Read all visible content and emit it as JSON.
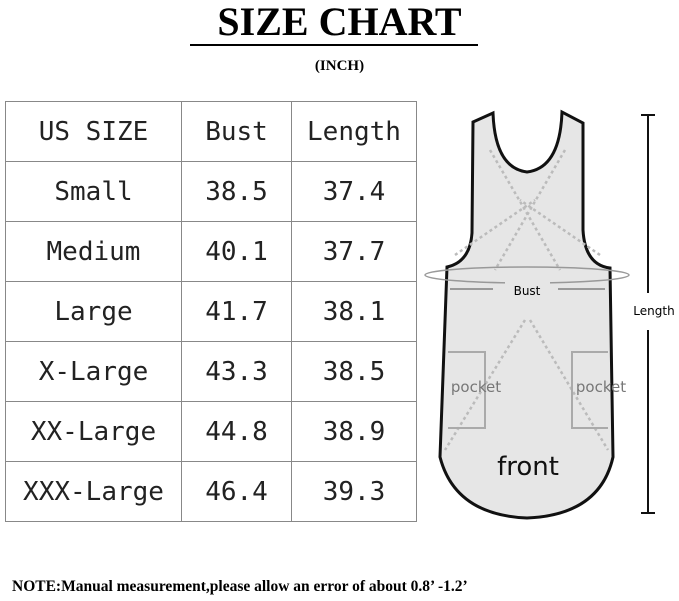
{
  "title": "SIZE CHART",
  "unit": "(INCH)",
  "table": {
    "headers": [
      "US SIZE",
      "Bust",
      "Length"
    ],
    "rows": [
      [
        "Small",
        "38.5",
        "37.4"
      ],
      [
        "Medium",
        "40.1",
        "37.7"
      ],
      [
        "Large",
        "41.7",
        "38.1"
      ],
      [
        "X-Large",
        "43.3",
        "38.5"
      ],
      [
        "XX-Large",
        "44.8",
        "38.9"
      ],
      [
        "XXX-Large",
        "46.4",
        "39.3"
      ]
    ]
  },
  "diagram": {
    "bust_label": "Bust",
    "length_label": "Length",
    "pocket_left": "pocket",
    "pocket_right": "pocket",
    "front_label": "front"
  },
  "note": "NOTE:Manual measurement,please allow an error of about 0.8’ -1.2’"
}
